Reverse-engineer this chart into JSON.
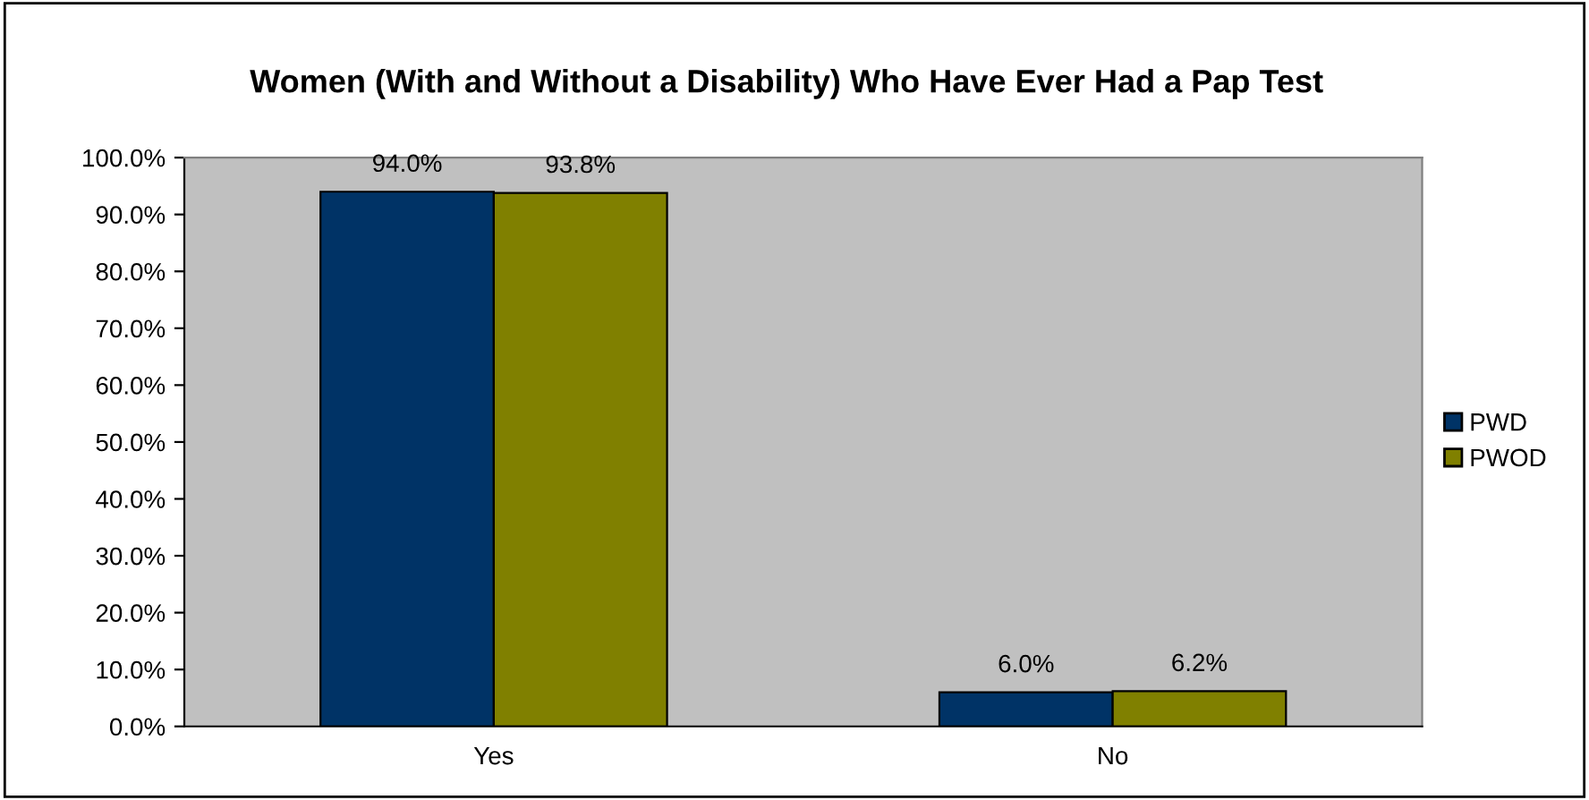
{
  "chart_data": {
    "type": "bar",
    "title": "Women (With and Without a Disability) Who Have Ever Had a Pap Test",
    "categories": [
      "Yes",
      "No"
    ],
    "series": [
      {
        "name": "PWD",
        "color": "#003366",
        "values": [
          94.0,
          6.0
        ],
        "value_labels": [
          "94.0%",
          "6.0%"
        ]
      },
      {
        "name": "PWOD",
        "color": "#808000",
        "values": [
          93.8,
          6.2
        ],
        "value_labels": [
          "93.8%",
          "6.2%"
        ]
      }
    ],
    "ylim": [
      0,
      100
    ],
    "yticks": [
      {
        "value": 0,
        "label": "0.0%"
      },
      {
        "value": 10,
        "label": "10.0%"
      },
      {
        "value": 20,
        "label": "20.0%"
      },
      {
        "value": 30,
        "label": "30.0%"
      },
      {
        "value": 40,
        "label": "40.0%"
      },
      {
        "value": 50,
        "label": "50.0%"
      },
      {
        "value": 60,
        "label": "60.0%"
      },
      {
        "value": 70,
        "label": "70.0%"
      },
      {
        "value": 80,
        "label": "80.0%"
      },
      {
        "value": 90,
        "label": "90.0%"
      },
      {
        "value": 100,
        "label": "100.0%"
      }
    ],
    "legend": "right"
  }
}
